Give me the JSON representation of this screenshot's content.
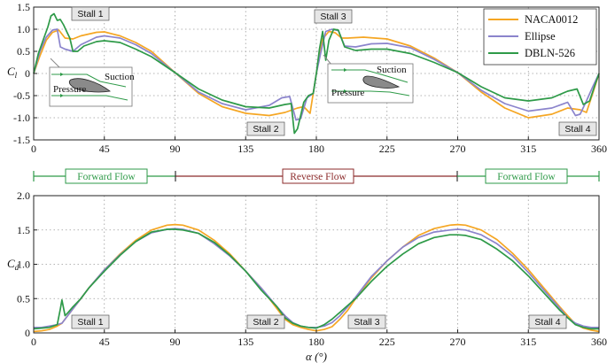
{
  "chart_data": [
    {
      "type": "line",
      "panel": "lift",
      "ylabel": "C",
      "ylabel_sub": "l",
      "xlim": [
        0,
        360
      ],
      "ylim": [
        -1.5,
        1.5
      ],
      "xticks": [
        "0",
        "45",
        "90",
        "135",
        "180",
        "225",
        "270",
        "315",
        "360"
      ],
      "yticks": [
        "-1.5",
        "-1.0",
        "-0.5",
        "0",
        "0.5",
        "1.0",
        "1.5"
      ],
      "grid": true,
      "legend": "top-right",
      "colors": {
        "NACA0012": "#f5a623",
        "Ellipse": "#8b84cc",
        "DBLN-526": "#2e9a48"
      },
      "series": [
        {
          "name": "NACA0012",
          "x": [
            0,
            4,
            8,
            12,
            16,
            20,
            25,
            30,
            40,
            45,
            55,
            65,
            75,
            90,
            105,
            120,
            135,
            150,
            160,
            168,
            172,
            176,
            180,
            184,
            188,
            192,
            196,
            200,
            210,
            225,
            240,
            255,
            270,
            285,
            300,
            315,
            330,
            340,
            348,
            352,
            356,
            360
          ],
          "y": [
            0,
            0.4,
            0.75,
            0.93,
            0.98,
            0.8,
            0.78,
            0.85,
            0.93,
            0.94,
            0.85,
            0.7,
            0.5,
            0.02,
            -0.45,
            -0.75,
            -0.9,
            -0.95,
            -0.88,
            -0.78,
            -0.75,
            -0.9,
            0,
            0.78,
            0.95,
            0.92,
            0.8,
            0.8,
            0.82,
            0.78,
            0.62,
            0.35,
            0.02,
            -0.42,
            -0.78,
            -1.0,
            -0.92,
            -0.78,
            -0.82,
            -0.88,
            -0.45,
            0
          ]
        },
        {
          "name": "Ellipse",
          "x": [
            0,
            4,
            8,
            12,
            15,
            17,
            20,
            25,
            30,
            40,
            45,
            55,
            65,
            75,
            90,
            105,
            120,
            135,
            150,
            158,
            163,
            167,
            170,
            174,
            178,
            180,
            183,
            186,
            190,
            194,
            198,
            205,
            215,
            225,
            240,
            255,
            270,
            285,
            300,
            315,
            330,
            340,
            345,
            348,
            352,
            356,
            360
          ],
          "y": [
            0,
            0.5,
            0.82,
            0.98,
            1.0,
            0.6,
            0.55,
            0.5,
            0.65,
            0.82,
            0.85,
            0.8,
            0.65,
            0.45,
            0.02,
            -0.42,
            -0.68,
            -0.82,
            -0.72,
            -0.55,
            -0.52,
            -1.05,
            -1.02,
            -0.55,
            -0.45,
            0,
            0.5,
            0.95,
            1.0,
            0.97,
            0.62,
            0.6,
            0.67,
            0.68,
            0.58,
            0.32,
            0.02,
            -0.38,
            -0.68,
            -0.85,
            -0.78,
            -0.65,
            -0.95,
            -0.92,
            -0.62,
            -0.3,
            0
          ]
        },
        {
          "name": "DBLN-526",
          "x": [
            0,
            3,
            6,
            9,
            11,
            13,
            15,
            17,
            19,
            21,
            23,
            25,
            28,
            32,
            40,
            45,
            55,
            65,
            75,
            90,
            105,
            120,
            135,
            150,
            160,
            164,
            166,
            168,
            170,
            172,
            175,
            178,
            180,
            182,
            184,
            186,
            188,
            191,
            194,
            198,
            205,
            215,
            225,
            240,
            255,
            270,
            285,
            300,
            315,
            330,
            340,
            346,
            350,
            354,
            357,
            360
          ],
          "y": [
            0,
            0.45,
            0.75,
            1.05,
            1.3,
            1.35,
            1.2,
            1.22,
            1.1,
            0.95,
            0.8,
            0.5,
            0.5,
            0.62,
            0.72,
            0.74,
            0.7,
            0.55,
            0.38,
            0.02,
            -0.35,
            -0.6,
            -0.75,
            -0.78,
            -0.7,
            -0.68,
            -1.35,
            -1.25,
            -0.95,
            -0.65,
            -0.5,
            -0.45,
            0,
            0.55,
            0.95,
            0.3,
            0.75,
            1.0,
            0.98,
            0.6,
            0.52,
            0.55,
            0.55,
            0.45,
            0.25,
            0.02,
            -0.3,
            -0.55,
            -0.62,
            -0.55,
            -0.4,
            -0.35,
            -0.7,
            -0.62,
            -0.3,
            0
          ]
        }
      ],
      "annotations": [
        "Stall 1",
        "Stall 2",
        "Stall 3",
        "Stall 4"
      ],
      "inset_labels": {
        "suction": "Suction",
        "pressure": "Pressure"
      }
    },
    {
      "type": "line",
      "panel": "drag",
      "xlabel": "α (°)",
      "ylabel": "C",
      "ylabel_sub": "d",
      "xlim": [
        0,
        360
      ],
      "ylim": [
        0,
        2.0
      ],
      "xticks": [
        "0",
        "45",
        "90",
        "135",
        "180",
        "225",
        "270",
        "315",
        "360"
      ],
      "yticks": [
        "0",
        "0.5",
        "1.0",
        "1.5",
        "2.0"
      ],
      "grid": true,
      "colors": {
        "NACA0012": "#f5a623",
        "Ellipse": "#8b84cc",
        "DBLN-526": "#2e9a48"
      },
      "series": [
        {
          "name": "NACA0012",
          "x": [
            0,
            5,
            10,
            15,
            18,
            20,
            25,
            30,
            35,
            45,
            55,
            65,
            75,
            85,
            90,
            95,
            105,
            115,
            125,
            135,
            145,
            155,
            160,
            165,
            170,
            175,
            180,
            185,
            190,
            195,
            200,
            205,
            215,
            225,
            235,
            245,
            255,
            265,
            270,
            275,
            285,
            295,
            305,
            315,
            325,
            335,
            340,
            345,
            350,
            355,
            360
          ],
          "y": [
            0.02,
            0.03,
            0.05,
            0.1,
            0.14,
            0.2,
            0.35,
            0.5,
            0.65,
            0.92,
            1.15,
            1.35,
            1.5,
            1.57,
            1.58,
            1.57,
            1.5,
            1.35,
            1.15,
            0.9,
            0.65,
            0.35,
            0.2,
            0.12,
            0.08,
            0.05,
            0.03,
            0.05,
            0.09,
            0.2,
            0.33,
            0.5,
            0.8,
            1.05,
            1.25,
            1.42,
            1.52,
            1.57,
            1.58,
            1.57,
            1.5,
            1.36,
            1.16,
            0.92,
            0.65,
            0.38,
            0.25,
            0.13,
            0.07,
            0.04,
            0.02
          ]
        },
        {
          "name": "Ellipse",
          "x": [
            0,
            5,
            10,
            15,
            18,
            20,
            25,
            30,
            35,
            45,
            55,
            65,
            75,
            85,
            90,
            95,
            105,
            115,
            125,
            135,
            145,
            155,
            160,
            165,
            170,
            175,
            180,
            185,
            190,
            195,
            200,
            205,
            215,
            225,
            235,
            245,
            255,
            265,
            270,
            275,
            285,
            295,
            305,
            315,
            325,
            335,
            340,
            345,
            350,
            355,
            360
          ],
          "y": [
            0.08,
            0.08,
            0.1,
            0.12,
            0.14,
            0.2,
            0.35,
            0.5,
            0.65,
            0.92,
            1.14,
            1.33,
            1.46,
            1.51,
            1.52,
            1.51,
            1.45,
            1.3,
            1.12,
            0.9,
            0.65,
            0.38,
            0.25,
            0.15,
            0.1,
            0.08,
            0.08,
            0.1,
            0.15,
            0.25,
            0.38,
            0.52,
            0.82,
            1.05,
            1.25,
            1.39,
            1.47,
            1.5,
            1.51,
            1.5,
            1.43,
            1.3,
            1.12,
            0.88,
            0.62,
            0.36,
            0.22,
            0.14,
            0.1,
            0.08,
            0.08
          ]
        },
        {
          "name": "DBLN-526",
          "x": [
            0,
            5,
            10,
            15,
            17,
            18,
            20,
            22,
            25,
            30,
            35,
            45,
            55,
            65,
            75,
            85,
            90,
            95,
            105,
            115,
            125,
            135,
            145,
            155,
            160,
            165,
            170,
            175,
            180,
            185,
            190,
            195,
            200,
            205,
            215,
            225,
            235,
            245,
            255,
            265,
            270,
            275,
            285,
            295,
            305,
            315,
            325,
            335,
            340,
            345,
            350,
            355,
            360
          ],
          "y": [
            0.06,
            0.07,
            0.08,
            0.12,
            0.35,
            0.48,
            0.25,
            0.3,
            0.38,
            0.5,
            0.65,
            0.9,
            1.13,
            1.33,
            1.47,
            1.51,
            1.51,
            1.5,
            1.45,
            1.32,
            1.13,
            0.9,
            0.62,
            0.38,
            0.22,
            0.14,
            0.1,
            0.08,
            0.07,
            0.12,
            0.2,
            0.3,
            0.4,
            0.5,
            0.75,
            0.97,
            1.15,
            1.3,
            1.39,
            1.43,
            1.43,
            1.42,
            1.36,
            1.22,
            1.05,
            0.83,
            0.58,
            0.33,
            0.22,
            0.12,
            0.08,
            0.06,
            0.06
          ]
        }
      ],
      "annotations": [
        "Stall 1",
        "Stall 2",
        "Stall 3",
        "Stall 4"
      ]
    }
  ],
  "flow_labels": [
    "Forward Flow",
    "Reverse Flow",
    "Forward Flow"
  ],
  "flow_colors": {
    "forward": "#2e9a48",
    "reverse": "#8b2a2a"
  }
}
